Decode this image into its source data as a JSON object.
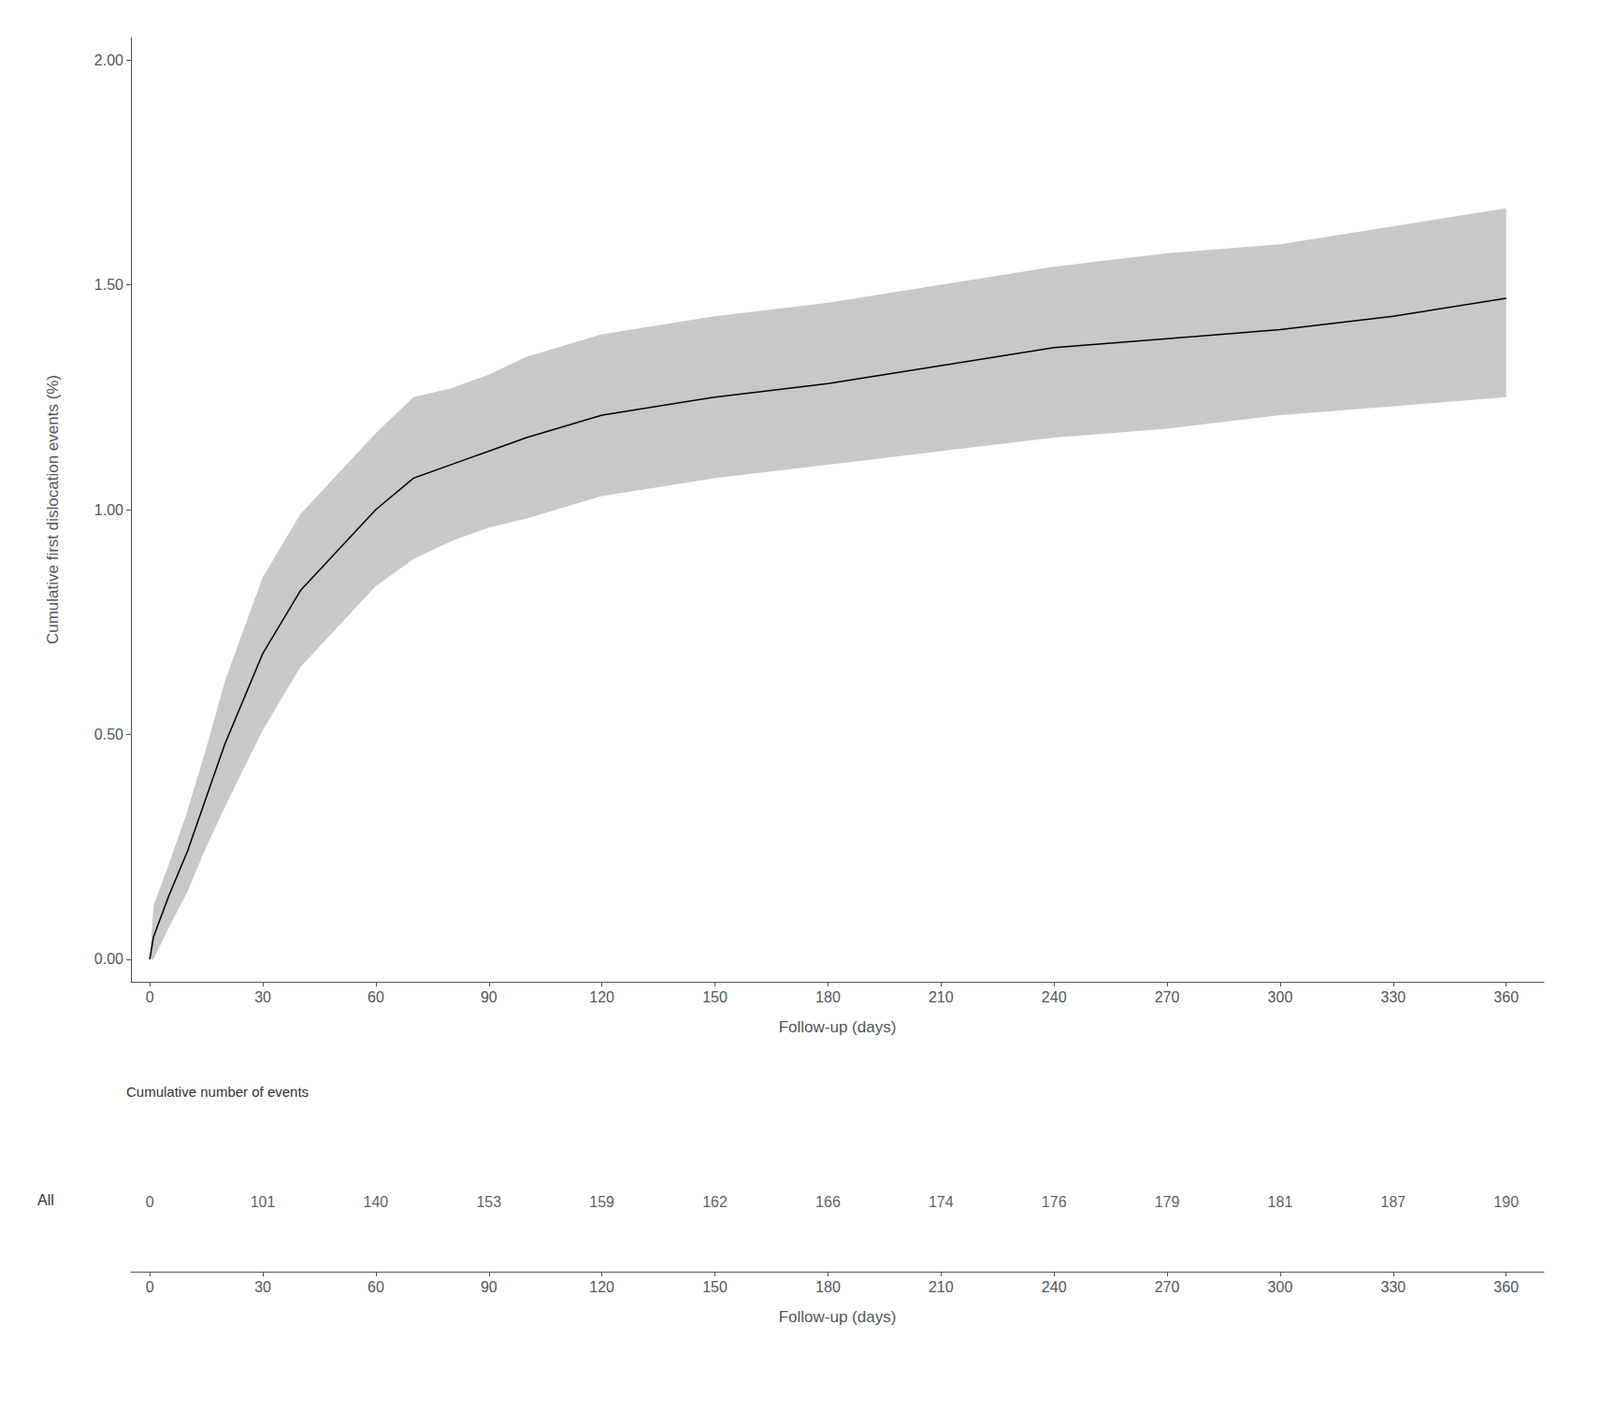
{
  "chart_data": [
    {
      "type": "line",
      "xlabel": "Follow-up (days)",
      "ylabel": "Cumulative first dislocation events (%)",
      "x": [
        0,
        1,
        5,
        10,
        15,
        20,
        30,
        40,
        50,
        60,
        70,
        80,
        90,
        100,
        120,
        150,
        180,
        210,
        240,
        270,
        300,
        330,
        360
      ],
      "series": [
        {
          "type": "line",
          "color": "#000000",
          "values": [
            0.0,
            0.05,
            0.14,
            0.24,
            0.36,
            0.48,
            0.68,
            0.82,
            0.91,
            1.0,
            1.07,
            1.1,
            1.13,
            1.16,
            1.21,
            1.25,
            1.28,
            1.32,
            1.36,
            1.38,
            1.4,
            1.43,
            1.47
          ]
        },
        {
          "type": "band",
          "color": "#c8c8c8",
          "lower": [
            0.0,
            0.0,
            0.07,
            0.15,
            0.25,
            0.34,
            0.51,
            0.65,
            0.74,
            0.83,
            0.89,
            0.93,
            0.96,
            0.98,
            1.03,
            1.07,
            1.1,
            1.13,
            1.16,
            1.18,
            1.21,
            1.23,
            1.25
          ],
          "upper": [
            0.0,
            0.12,
            0.21,
            0.33,
            0.47,
            0.62,
            0.85,
            0.99,
            1.08,
            1.17,
            1.25,
            1.27,
            1.3,
            1.34,
            1.39,
            1.43,
            1.46,
            1.5,
            1.54,
            1.57,
            1.59,
            1.63,
            1.67
          ]
        }
      ],
      "xlim": [
        -5,
        370
      ],
      "ylim": [
        -0.05,
        2.05
      ],
      "xticks": [
        0,
        30,
        60,
        90,
        120,
        150,
        180,
        210,
        240,
        270,
        300,
        330,
        360
      ],
      "yticks": [
        {
          "value": 0.0,
          "label": "0.00"
        },
        {
          "value": 0.5,
          "label": "0.50"
        },
        {
          "value": 1.0,
          "label": "1.00"
        },
        {
          "value": 1.5,
          "label": "1.50"
        },
        {
          "value": 2.0,
          "label": "2.00"
        }
      ],
      "grid": false
    },
    {
      "type": "table",
      "title": "Cumulative number of events",
      "row_label": "All",
      "x": [
        0,
        30,
        60,
        90,
        120,
        150,
        180,
        210,
        240,
        270,
        300,
        330,
        360
      ],
      "values": [
        0,
        101,
        140,
        153,
        159,
        162,
        166,
        174,
        176,
        179,
        181,
        187,
        190
      ],
      "xlabel": "Follow-up (days)",
      "xlim": [
        -5,
        370
      ],
      "xticks": [
        0,
        30,
        60,
        90,
        120,
        150,
        180,
        210,
        240,
        270,
        300,
        330,
        360
      ]
    }
  ]
}
